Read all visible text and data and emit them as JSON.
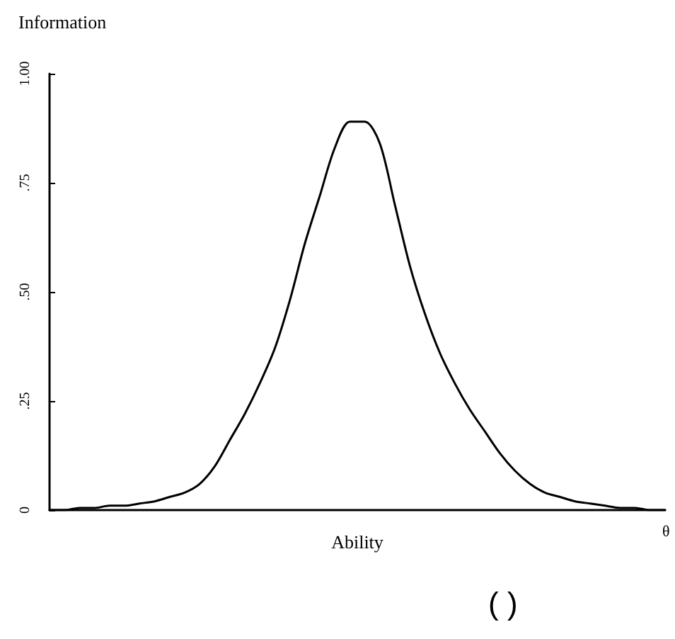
{
  "chart_data": {
    "type": "line",
    "ylabel": "Information",
    "xlabel": "Ability",
    "annotations": [
      "θ",
      "( )"
    ],
    "categories": [
      null,
      null,
      null,
      null,
      null,
      null,
      null,
      null,
      null,
      null,
      null,
      null,
      null,
      null,
      null,
      null,
      null,
      null,
      null,
      null,
      null,
      null,
      null,
      null,
      null,
      null,
      null,
      null,
      null,
      null,
      null,
      null,
      null,
      null,
      null,
      null,
      null,
      null,
      null,
      null,
      null,
      null
    ],
    "series": [
      {
        "color": "#000000",
        "values": [
          0.0,
          0.0,
          0.005,
          0.005,
          0.01,
          0.01,
          0.015,
          0.02,
          0.03,
          0.04,
          0.06,
          0.1,
          0.16,
          0.22,
          0.29,
          0.37,
          0.48,
          0.61,
          0.72,
          0.83,
          0.89,
          0.89,
          0.84,
          0.7,
          0.56,
          0.45,
          0.36,
          0.29,
          0.23,
          0.18,
          0.13,
          0.09,
          0.06,
          0.04,
          0.03,
          0.02,
          0.015,
          0.01,
          0.005,
          0.005,
          0.0,
          0.0
        ]
      }
    ],
    "ylim": [
      0,
      1
    ],
    "yticks": [
      0,
      {
        "value": 0.25,
        "label": ".25"
      },
      {
        "value": 0.5,
        "label": ".50"
      },
      {
        "value": 0.75,
        "label": ".75"
      },
      {
        "value": 1,
        "label": "1.00"
      }
    ],
    "tick_labels": "y",
    "grid": false,
    "marker": "none",
    "line_style": "solid"
  }
}
